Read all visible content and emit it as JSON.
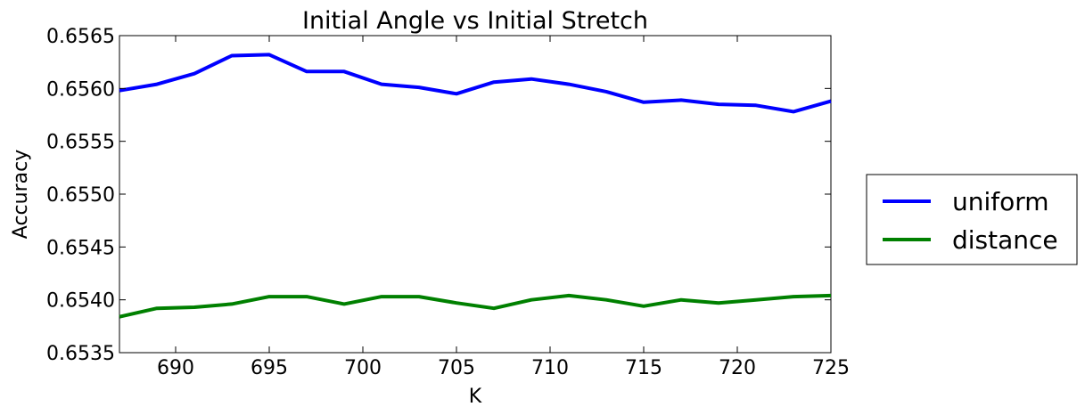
{
  "chart_data": {
    "type": "line",
    "title": "Initial Angle vs Initial Stretch",
    "xlabel": "K",
    "ylabel": "Accuracy",
    "xlim": [
      687,
      725
    ],
    "ylim": [
      0.6535,
      0.6565
    ],
    "xticks": [
      690,
      695,
      700,
      705,
      710,
      715,
      720,
      725
    ],
    "yticks": [
      0.6535,
      0.654,
      0.6545,
      0.655,
      0.6555,
      0.656,
      0.6565
    ],
    "ytick_labels": [
      "0.6535",
      "0.6540",
      "0.6545",
      "0.6550",
      "0.6555",
      "0.6560",
      "0.6565"
    ],
    "grid": false,
    "legend_position": "outside-right",
    "x": [
      687,
      689,
      691,
      693,
      695,
      697,
      699,
      701,
      703,
      705,
      707,
      709,
      711,
      713,
      715,
      717,
      719,
      721,
      723,
      725
    ],
    "series": [
      {
        "name": "uniform",
        "color": "#0000ff",
        "values": [
          0.65598,
          0.65604,
          0.65614,
          0.65631,
          0.65632,
          0.65616,
          0.65616,
          0.65604,
          0.65601,
          0.65595,
          0.65606,
          0.65609,
          0.65604,
          0.65597,
          0.65587,
          0.65589,
          0.65585,
          0.65584,
          0.65578,
          0.65588
        ]
      },
      {
        "name": "distance",
        "color": "#008000",
        "values": [
          0.65384,
          0.65392,
          0.65393,
          0.65396,
          0.65403,
          0.65403,
          0.65396,
          0.65403,
          0.65403,
          0.65397,
          0.65392,
          0.654,
          0.65404,
          0.654,
          0.65394,
          0.654,
          0.65397,
          0.654,
          0.65403,
          0.65404
        ]
      }
    ]
  }
}
